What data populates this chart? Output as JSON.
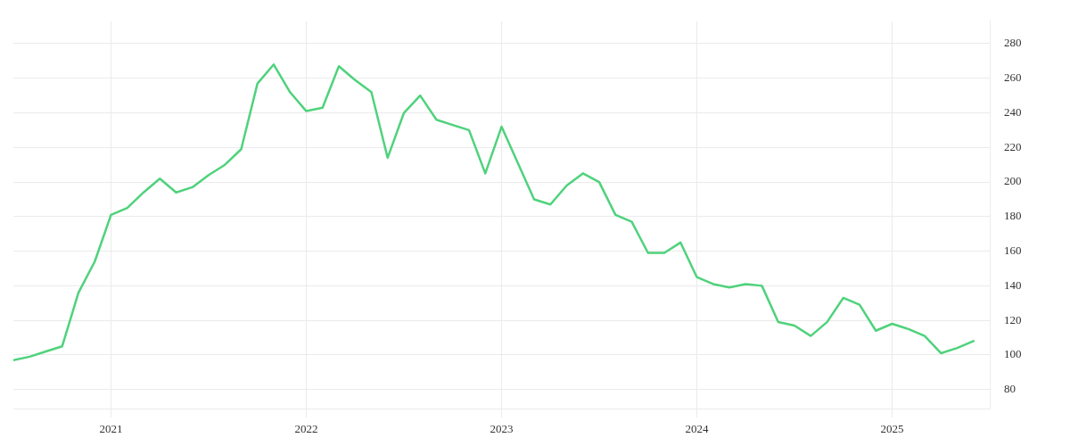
{
  "chart_data": {
    "type": "line",
    "x": [
      "2020-07",
      "2020-08",
      "2020-09",
      "2020-10",
      "2020-11",
      "2020-12",
      "2021-01",
      "2021-02",
      "2021-03",
      "2021-04",
      "2021-05",
      "2021-06",
      "2021-07",
      "2021-08",
      "2021-09",
      "2021-10",
      "2021-11",
      "2021-12",
      "2022-01",
      "2022-02",
      "2022-03",
      "2022-04",
      "2022-05",
      "2022-06",
      "2022-07",
      "2022-08",
      "2022-09",
      "2022-10",
      "2022-11",
      "2022-12",
      "2023-01",
      "2023-02",
      "2023-03",
      "2023-04",
      "2023-05",
      "2023-06",
      "2023-07",
      "2023-08",
      "2023-09",
      "2023-10",
      "2023-11",
      "2023-12",
      "2024-01",
      "2024-02",
      "2024-03",
      "2024-04",
      "2024-05",
      "2024-06",
      "2024-07",
      "2024-08",
      "2024-09",
      "2024-10",
      "2024-11",
      "2024-12",
      "2025-01",
      "2025-02",
      "2025-03",
      "2025-04",
      "2025-05",
      "2025-06"
    ],
    "series": [
      {
        "color": "#4fd27c",
        "values": [
          97,
          99,
          102,
          105,
          136,
          154,
          181,
          185,
          194,
          202,
          194,
          197,
          204,
          210,
          219,
          257,
          268,
          252,
          241,
          243,
          267,
          259,
          252,
          214,
          240,
          250,
          236,
          233,
          230,
          205,
          232,
          211,
          190,
          187,
          198,
          205,
          200,
          181,
          177,
          159,
          159,
          165,
          145,
          141,
          139,
          141,
          140,
          119,
          117,
          111,
          119,
          133,
          129,
          114,
          118,
          115,
          111,
          101,
          104,
          108
        ]
      }
    ],
    "xlim": [
      "2020-07",
      "2025-07"
    ],
    "xticks": [
      {
        "value": "2021",
        "label": "2021"
      },
      {
        "value": "2022",
        "label": "2022"
      },
      {
        "value": "2023",
        "label": "2023"
      },
      {
        "value": "2024",
        "label": "2024"
      },
      {
        "value": "2025",
        "label": "2025"
      }
    ],
    "ylim": [
      69,
      293
    ],
    "yticks": [
      80,
      100,
      120,
      140,
      160,
      180,
      200,
      220,
      240,
      260,
      280
    ],
    "grid": true,
    "legend": false,
    "marker": "none",
    "line_style": "solid"
  }
}
